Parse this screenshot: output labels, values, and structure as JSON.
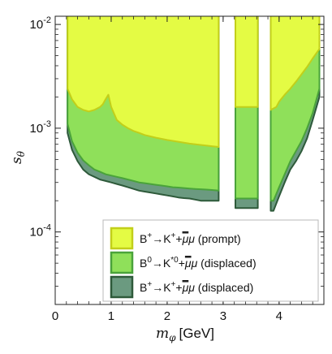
{
  "chart_data": {
    "type": "area",
    "xlabel": "m",
    "xlabel_sub": "φ",
    "xlabel_unit": "[GeV]",
    "ylabel": "s",
    "ylabel_sub": "θ",
    "xlim": [
      0,
      4.8
    ],
    "ylim": [
      2e-05,
      0.012
    ],
    "yscale": "log",
    "x_ticks": [
      {
        "value": 0,
        "label": "0"
      },
      {
        "value": 1,
        "label": "1"
      },
      {
        "value": 2,
        "label": "2"
      },
      {
        "value": 3,
        "label": "3"
      },
      {
        "value": 4,
        "label": "4"
      }
    ],
    "y_ticks": [
      {
        "value": 0.01,
        "label": "10",
        "exp": "-2"
      },
      {
        "value": 0.001,
        "label": "10",
        "exp": "-3"
      },
      {
        "value": 0.0001,
        "label": "10",
        "exp": "-4"
      }
    ],
    "legend_position": "bottom-right",
    "series": [
      {
        "name": "B⁺→K⁺+μ̄μ (displaced)",
        "legend": {
          "main": "B",
          "sup1": "+",
          "mid": "→K",
          "sup2": "+",
          "plus": "+",
          "mu1": "μ",
          "mu2": "μ",
          "note": "(displaced)"
        },
        "color": "#6b9a80",
        "edge": "#2e5a3a",
        "regions": [
          {
            "x": [
              0.22,
              0.3,
              0.4,
              0.5,
              0.6,
              0.7,
              0.8,
              0.9,
              1.0,
              1.1,
              1.2,
              1.3,
              1.4,
              1.5,
              1.6,
              1.7,
              1.8,
              1.9,
              2.0,
              2.1,
              2.2,
              2.3,
              2.4,
              2.5,
              2.6,
              2.7,
              2.8,
              2.92
            ],
            "y": [
              0.0009,
              0.00062,
              0.00048,
              0.0004,
              0.00036,
              0.00034,
              0.00032,
              0.00031,
              0.0003,
              0.00029,
              0.00028,
              0.00027,
              0.00026,
              0.00025,
              0.000245,
              0.00024,
              0.000235,
              0.00023,
              0.000225,
              0.00022,
              0.000215,
              0.000212,
              0.00021,
              0.000205,
              0.0002,
              0.0002,
              0.0002,
              0.0002
            ]
          },
          {
            "x": [
              3.22,
              3.3,
              3.4,
              3.5,
              3.62
            ],
            "y": [
              0.00017,
              0.00017,
              0.00017,
              0.00017,
              0.00017
            ]
          },
          {
            "x": [
              3.85,
              3.9,
              4.0,
              4.1,
              4.2,
              4.3,
              4.4,
              4.5,
              4.6,
              4.72
            ],
            "y": [
              0.00016,
              0.00016,
              0.00022,
              0.0003,
              0.0004,
              0.00048,
              0.0006,
              0.0008,
              0.0012,
              0.002
            ]
          }
        ]
      },
      {
        "name": "B⁰→K*⁰+μ̄μ (displaced)",
        "legend": {
          "main": "B",
          "sup1": "0",
          "mid": "→K",
          "sup2": "*0",
          "plus": "+",
          "mu1": "μ",
          "mu2": "μ",
          "note": "(displaced)"
        },
        "color": "#8fe05a",
        "edge": "#4aa33a",
        "regions": [
          {
            "x": [
              0.22,
              0.3,
              0.4,
              0.5,
              0.6,
              0.7,
              0.8,
              0.9,
              1.0,
              1.1,
              1.2,
              1.3,
              1.4,
              1.5,
              1.6,
              1.7,
              1.8,
              1.9,
              2.0,
              2.1,
              2.2,
              2.3,
              2.4,
              2.5,
              2.6,
              2.7,
              2.8,
              2.92
            ],
            "y": [
              0.0011,
              0.00075,
              0.00058,
              0.00049,
              0.00044,
              0.0004,
              0.00038,
              0.00036,
              0.00035,
              0.00034,
              0.00033,
              0.00032,
              0.00031,
              0.0003,
              0.000295,
              0.00029,
              0.000285,
              0.00028,
              0.000275,
              0.00027,
              0.000268,
              0.000265,
              0.000262,
              0.00026,
              0.000258,
              0.000256,
              0.000254,
              0.00025
            ]
          },
          {
            "x": [
              3.22,
              3.3,
              3.4,
              3.5,
              3.62
            ],
            "y": [
              0.00021,
              0.00021,
              0.00021,
              0.00021,
              0.00021
            ]
          },
          {
            "x": [
              3.85,
              3.9,
              4.0,
              4.1,
              4.2,
              4.3,
              4.4,
              4.5,
              4.6,
              4.72
            ],
            "y": [
              0.0002,
              0.0002,
              0.00027,
              0.00036,
              0.00048,
              0.0006,
              0.00075,
              0.001,
              0.0014,
              0.0024
            ]
          }
        ]
      },
      {
        "name": "B⁺→K⁺+μ̄μ (prompt)",
        "legend": {
          "main": "B",
          "sup1": "+",
          "mid": "→K",
          "sup2": "+",
          "plus": "+",
          "mu1": "μ",
          "mu2": "μ",
          "note": "(prompt)"
        },
        "color": "#e4fb44",
        "edge": "#c2cf1a",
        "regions": [
          {
            "x": [
              0.22,
              0.3,
              0.4,
              0.5,
              0.6,
              0.7,
              0.8,
              0.85,
              0.9,
              0.95,
              1.0,
              1.1,
              1.2,
              1.3,
              1.4,
              1.5,
              1.6,
              1.8,
              2.0,
              2.2,
              2.4,
              2.6,
              2.8,
              2.92
            ],
            "y": [
              0.0024,
              0.0019,
              0.0016,
              0.0015,
              0.00145,
              0.0015,
              0.0016,
              0.0017,
              0.0019,
              0.0021,
              0.0016,
              0.0012,
              0.00108,
              0.001,
              0.00094,
              0.0009,
              0.00086,
              0.00081,
              0.00077,
              0.00074,
              0.00071,
              0.00069,
              0.00067,
              0.00066
            ]
          },
          {
            "x": [
              3.22,
              3.3,
              3.4,
              3.5,
              3.62
            ],
            "y": [
              0.0016,
              0.0016,
              0.0016,
              0.0016,
              0.0016
            ]
          },
          {
            "x": [
              3.85,
              3.95,
              4.0,
              4.1,
              4.2,
              4.3,
              4.4,
              4.5,
              4.6,
              4.72
            ],
            "y": [
              0.0015,
              0.0016,
              0.0018,
              0.0021,
              0.0024,
              0.0028,
              0.0033,
              0.0039,
              0.0047,
              0.0058
            ]
          }
        ]
      }
    ]
  }
}
